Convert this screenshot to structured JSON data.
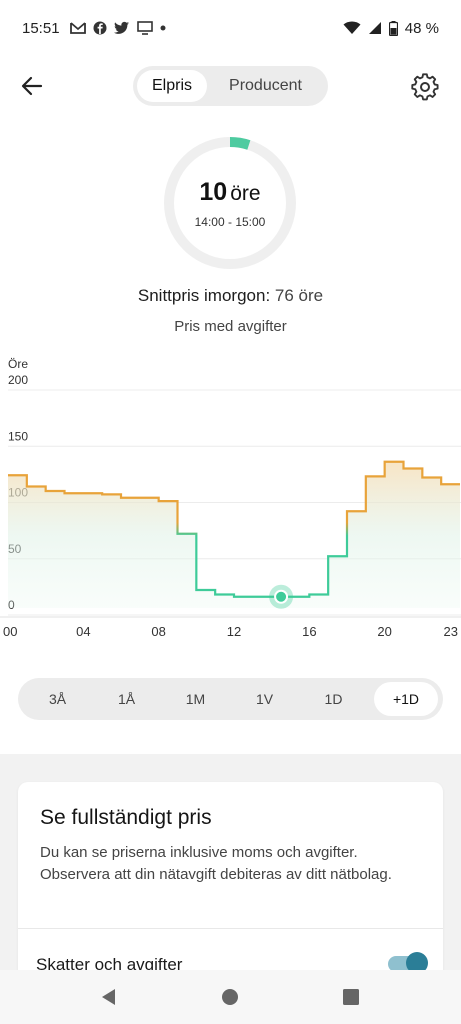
{
  "status_bar": {
    "time": "15:51",
    "battery": "48 %"
  },
  "header": {
    "tabs": [
      {
        "label": "Elpris",
        "active": true
      },
      {
        "label": "Producent",
        "active": false
      }
    ]
  },
  "gauge": {
    "value": "10",
    "unit": "öre",
    "time_range": "14:00 - 15:00",
    "progress_fraction": 0.05,
    "accent_color": "#4ecba0"
  },
  "summary": {
    "avg_label": "Snittpris imorgon:",
    "avg_value": "76 öre",
    "incl_label": "Pris med avgifter"
  },
  "chart_data": {
    "type": "line",
    "step": true,
    "ylabel": "Öre",
    "yticks": [
      "200",
      "150",
      "100",
      "50",
      "0"
    ],
    "ylim": [
      0,
      200
    ],
    "xticks": [
      "00",
      "04",
      "08",
      "12",
      "16",
      "20",
      "23"
    ],
    "xlim": [
      0,
      24
    ],
    "series": [
      {
        "hours": [
          0,
          1,
          2,
          3,
          4,
          5,
          6,
          7,
          8,
          9,
          10,
          11,
          12,
          13,
          14,
          15,
          16,
          17,
          18,
          19,
          20,
          21,
          22,
          23
        ],
        "values": [
          118,
          108,
          104,
          102,
          102,
          101,
          98,
          98,
          95,
          66,
          16,
          12,
          10,
          10,
          10,
          10,
          12,
          46,
          86,
          117,
          130,
          124,
          116,
          110
        ]
      }
    ],
    "highlight_hour": 14.5,
    "highlight_value": 10,
    "colors": {
      "high": "#e8a33a",
      "low": "#3ecb99"
    }
  },
  "range_tabs": [
    {
      "label": "3Å",
      "active": false
    },
    {
      "label": "1Å",
      "active": false
    },
    {
      "label": "1M",
      "active": false
    },
    {
      "label": "1V",
      "active": false
    },
    {
      "label": "1D",
      "active": false
    },
    {
      "label": "+1D",
      "active": true
    }
  ],
  "card": {
    "title": "Se fullständigt pris",
    "text": "Du kan se priserna inklusive moms och avgifter. Observera att din nätavgift debiteras av ditt nätbolag.",
    "toggle_label": "Skatter och avgifter",
    "toggle_on": true
  }
}
